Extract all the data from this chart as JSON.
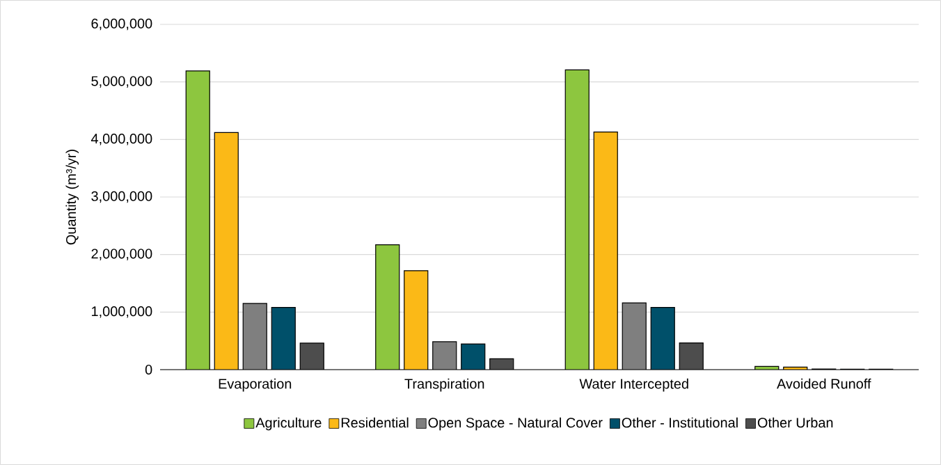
{
  "chart_data": {
    "type": "bar",
    "ylabel": "Quantity (m³/yr)",
    "categories": [
      "Evaporation",
      "Transpiration",
      "Water Intercepted",
      "Avoided Runoff"
    ],
    "series": [
      {
        "name": "Agriculture",
        "color": "#8dc63f",
        "values": [
          5190000,
          2170000,
          5210000,
          56000
        ]
      },
      {
        "name": "Residential",
        "color": "#fbb917",
        "values": [
          4120000,
          1720000,
          4130000,
          43000
        ]
      },
      {
        "name": "Open Space - Natural Cover",
        "color": "#7f7f7f",
        "values": [
          1150000,
          485000,
          1160000,
          10000
        ]
      },
      {
        "name": "Other - Institutional",
        "color": "#00506a",
        "values": [
          1080000,
          447000,
          1080000,
          9000
        ]
      },
      {
        "name": "Other Urban",
        "color": "#4d4d4d",
        "values": [
          460000,
          188000,
          464000,
          7000
        ]
      }
    ],
    "ylim": [
      0,
      6000000
    ],
    "yticks": [
      {
        "value": 0,
        "label": "0"
      },
      {
        "value": 1000000,
        "label": "1,000,000"
      },
      {
        "value": 2000000,
        "label": "2,000,000"
      },
      {
        "value": 3000000,
        "label": "3,000,000"
      },
      {
        "value": 4000000,
        "label": "4,000,000"
      },
      {
        "value": 5000000,
        "label": "5,000,000"
      },
      {
        "value": 6000000,
        "label": "6,000,000"
      }
    ],
    "grid": "y",
    "legend": "bottom"
  }
}
